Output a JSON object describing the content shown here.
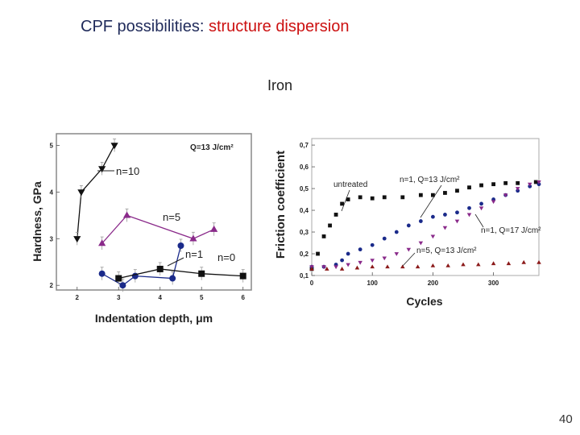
{
  "slide": {
    "title_part1": "CPF possibilities:",
    "title_part2": "structure dispersion",
    "subtitle": "Iron",
    "page_number": "40"
  },
  "chart_data": [
    {
      "type": "line",
      "xlabel": "Indentation depth, μm",
      "ylabel": "Hardness, GPa",
      "xlim": [
        1.5,
        6.2
      ],
      "ylim": [
        1.9,
        5.25
      ],
      "x_ticks": [
        "2",
        "3",
        "4",
        "5",
        "6"
      ],
      "y_ticks": [
        "2",
        "3",
        "4",
        "5"
      ],
      "x_tick_values": [
        2,
        3,
        4,
        5,
        6
      ],
      "y_tick_values": [
        2,
        3,
        4,
        5
      ],
      "annotations": [
        "Q=13 J/cm²",
        "n=10",
        "n=5",
        "n=1",
        "n=0"
      ],
      "series": [
        {
          "name": "n=10",
          "marker": "triangle-down",
          "color": "#111111",
          "x": [
            2.0,
            2.1,
            2.6,
            2.9
          ],
          "y": [
            3.0,
            4.0,
            4.5,
            5.0
          ]
        },
        {
          "name": "n=5",
          "marker": "triangle-up",
          "color": "#8a2a8a",
          "x": [
            2.6,
            3.2,
            4.8,
            5.3
          ],
          "y": [
            2.9,
            3.5,
            3.0,
            3.2
          ]
        },
        {
          "name": "n=1",
          "marker": "circle",
          "color": "#1a2a8a",
          "x": [
            2.6,
            3.1,
            3.4,
            4.3,
            4.5
          ],
          "y": [
            2.25,
            2.0,
            2.2,
            2.15,
            2.85
          ]
        },
        {
          "name": "n=0",
          "marker": "square",
          "color": "#111111",
          "x": [
            3.0,
            4.0,
            5.0,
            6.0
          ],
          "y": [
            2.15,
            2.35,
            2.25,
            2.2
          ]
        }
      ]
    },
    {
      "type": "line",
      "xlabel": "Cycles",
      "ylabel": "Friction coefficient",
      "xlim": [
        0,
        375
      ],
      "ylim": [
        0.1,
        0.73
      ],
      "x_ticks": [
        "0",
        "100",
        "200",
        "300"
      ],
      "y_ticks": [
        "0,1",
        "0,2",
        "0,3",
        "0,4",
        "0,5",
        "0,6",
        "0,7"
      ],
      "x_tick_values": [
        0,
        100,
        200,
        300
      ],
      "y_tick_values": [
        0.1,
        0.2,
        0.3,
        0.4,
        0.5,
        0.6,
        0.7
      ],
      "annotations": [
        "untreated",
        "n=1, Q=13 J/cm²",
        "n=1, Q=17 J/cm²",
        "n=5, Q=13 J/cm²"
      ],
      "series": [
        {
          "name": "untreated",
          "marker": "square",
          "color": "#111111",
          "x": [
            0,
            10,
            20,
            30,
            40,
            50,
            60,
            80,
            100,
            120,
            150,
            180,
            200,
            220,
            240,
            260,
            280,
            300,
            320,
            340,
            370
          ],
          "y": [
            0.13,
            0.2,
            0.28,
            0.33,
            0.38,
            0.43,
            0.45,
            0.46,
            0.455,
            0.46,
            0.46,
            0.47,
            0.47,
            0.48,
            0.49,
            0.505,
            0.515,
            0.52,
            0.525,
            0.525,
            0.53
          ]
        },
        {
          "name": "n=1, Q=13 J/cm²",
          "marker": "circle",
          "color": "#1a2a8a",
          "x": [
            0,
            20,
            40,
            50,
            60,
            80,
            100,
            120,
            140,
            160,
            180,
            200,
            220,
            240,
            260,
            280,
            300,
            320,
            340,
            360,
            375
          ],
          "y": [
            0.14,
            0.14,
            0.15,
            0.17,
            0.2,
            0.22,
            0.24,
            0.27,
            0.3,
            0.33,
            0.35,
            0.37,
            0.38,
            0.39,
            0.41,
            0.43,
            0.45,
            0.47,
            0.49,
            0.51,
            0.52
          ]
        },
        {
          "name": "n=1, Q=17 J/cm²",
          "marker": "triangle-down",
          "color": "#8a2a8a",
          "x": [
            0,
            20,
            40,
            60,
            80,
            100,
            120,
            140,
            160,
            180,
            200,
            220,
            240,
            260,
            280,
            300,
            320,
            340,
            360,
            375
          ],
          "y": [
            0.14,
            0.14,
            0.14,
            0.15,
            0.16,
            0.17,
            0.18,
            0.2,
            0.22,
            0.25,
            0.28,
            0.32,
            0.35,
            0.38,
            0.41,
            0.44,
            0.47,
            0.5,
            0.52,
            0.53
          ]
        },
        {
          "name": "n=5, Q=13 J/cm²",
          "marker": "triangle-up",
          "color": "#8b1a1a",
          "x": [
            0,
            25,
            50,
            75,
            100,
            125,
            150,
            175,
            200,
            225,
            250,
            275,
            300,
            325,
            350,
            375
          ],
          "y": [
            0.13,
            0.13,
            0.13,
            0.135,
            0.14,
            0.14,
            0.14,
            0.14,
            0.145,
            0.145,
            0.15,
            0.15,
            0.155,
            0.155,
            0.16,
            0.16
          ]
        }
      ]
    }
  ]
}
